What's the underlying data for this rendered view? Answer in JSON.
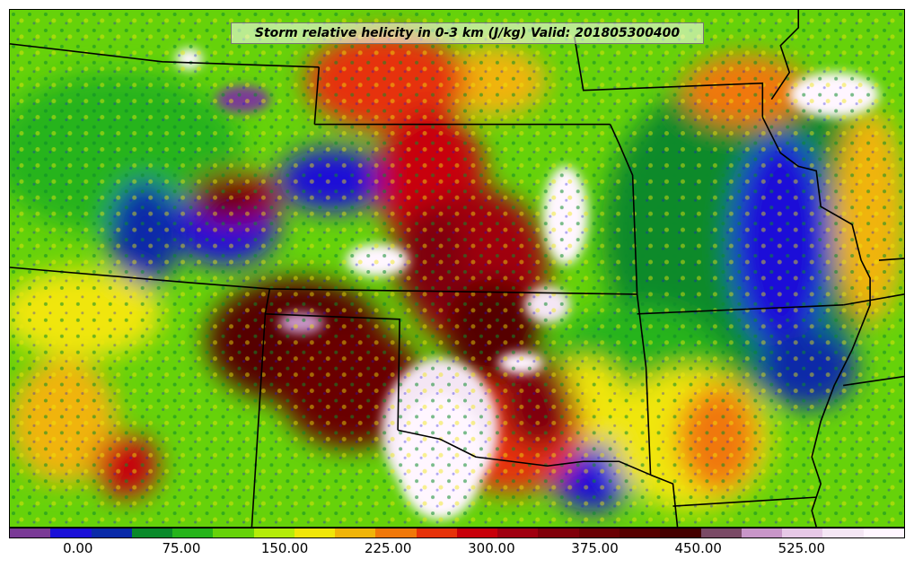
{
  "title": "Storm relative helicity in 0-3 km (J/kg) Valid: 201805300400",
  "colorbar": {
    "colors": [
      "#7a3a96",
      "#1a10d8",
      "#0a2aa8",
      "#0a8a2a",
      "#26b41a",
      "#66d20a",
      "#b4ec0a",
      "#f0e60a",
      "#f0b40a",
      "#f0780a",
      "#e6320a",
      "#c8000a",
      "#a00010",
      "#80000a",
      "#6a0004",
      "#560000",
      "#440000",
      "#7a4a66",
      "#c896c8",
      "#e6c8e6",
      "#f4e6f4",
      "#fff6ff"
    ],
    "labels": [
      {
        "text": "0.00",
        "value": 0
      },
      {
        "text": "75.00",
        "value": 75
      },
      {
        "text": "150.00",
        "value": 150
      },
      {
        "text": "225.00",
        "value": 225
      },
      {
        "text": "300.00",
        "value": 300
      },
      {
        "text": "375.00",
        "value": 375
      },
      {
        "text": "450.00",
        "value": 450
      },
      {
        "text": "525.00",
        "value": 525
      }
    ],
    "min": -50,
    "max": 600
  }
}
